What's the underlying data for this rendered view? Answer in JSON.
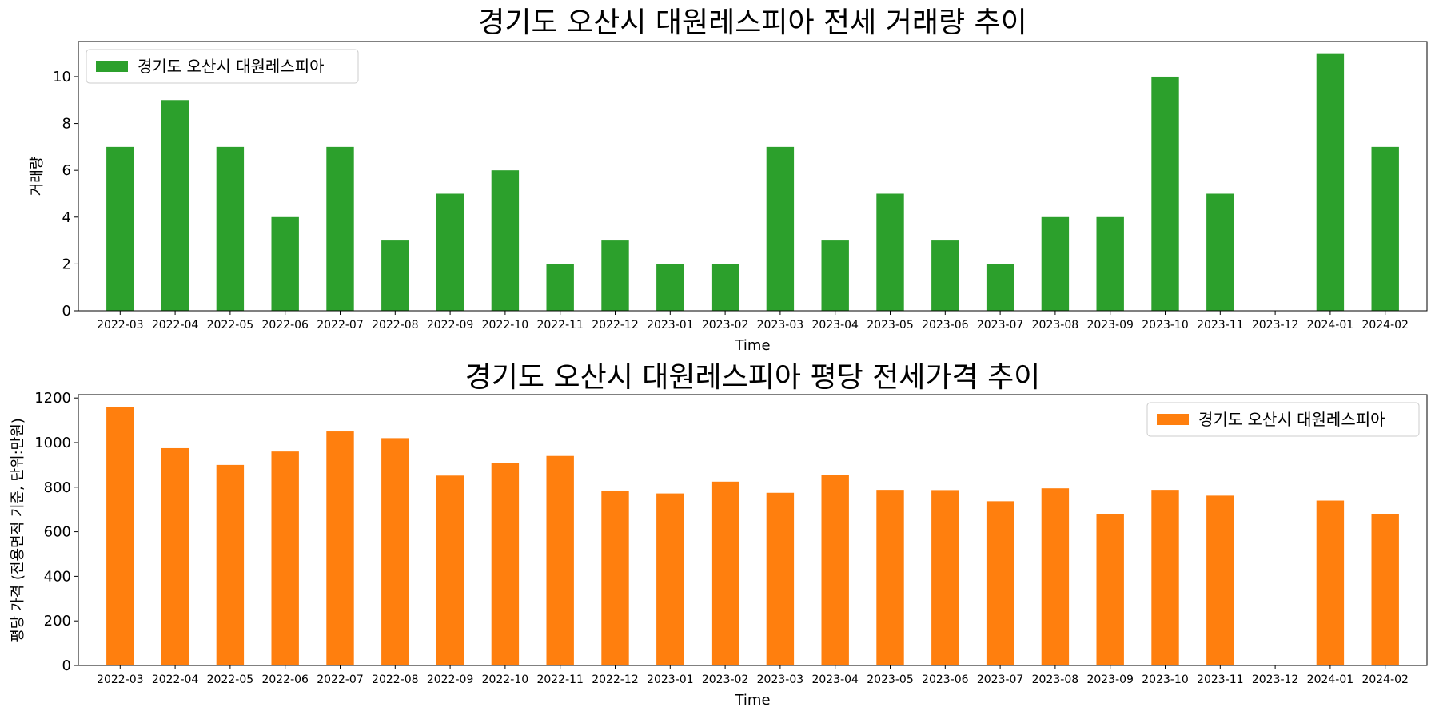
{
  "chart_data": [
    {
      "type": "bar",
      "title": "경기도 오산시 대원레스피아 전세 거래량 추이",
      "xlabel": "Time",
      "ylabel": "거래량",
      "ylim": [
        0,
        11.5
      ],
      "yticks": [
        0,
        2,
        4,
        6,
        8,
        10
      ],
      "legend_position": "top-left",
      "color": "#2ca02c",
      "categories": [
        "2022-03",
        "2022-04",
        "2022-05",
        "2022-06",
        "2022-07",
        "2022-08",
        "2022-09",
        "2022-10",
        "2022-11",
        "2022-12",
        "2023-01",
        "2023-02",
        "2023-03",
        "2023-04",
        "2023-05",
        "2023-06",
        "2023-07",
        "2023-08",
        "2023-09",
        "2023-10",
        "2023-11",
        "2023-12",
        "2024-01",
        "2024-02"
      ],
      "series": [
        {
          "name": "경기도 오산시 대원레스피아",
          "values": [
            7,
            9,
            7,
            4,
            7,
            3,
            5,
            6,
            2,
            3,
            2,
            2,
            7,
            3,
            5,
            3,
            2,
            4,
            4,
            10,
            5,
            null,
            11,
            7
          ]
        }
      ]
    },
    {
      "type": "bar",
      "title": "경기도 오산시 대원레스피아 평당 전세가격 추이",
      "xlabel": "Time",
      "ylabel": "평당 가격 (전용면적 기준, 단위:만원)",
      "ylim": [
        0,
        1215
      ],
      "yticks": [
        0,
        200,
        400,
        600,
        800,
        1000,
        1200
      ],
      "legend_position": "top-right",
      "color": "#ff7f0e",
      "categories": [
        "2022-03",
        "2022-04",
        "2022-05",
        "2022-06",
        "2022-07",
        "2022-08",
        "2022-09",
        "2022-10",
        "2022-11",
        "2022-12",
        "2023-01",
        "2023-02",
        "2023-03",
        "2023-04",
        "2023-05",
        "2023-06",
        "2023-07",
        "2023-08",
        "2023-09",
        "2023-10",
        "2023-11",
        "2023-12",
        "2024-01",
        "2024-02"
      ],
      "series": [
        {
          "name": "경기도 오산시 대원레스피아",
          "values": [
            1160,
            975,
            900,
            960,
            1050,
            1020,
            852,
            910,
            940,
            785,
            772,
            825,
            775,
            855,
            788,
            787,
            737,
            795,
            680,
            788,
            762,
            null,
            740,
            680
          ]
        }
      ]
    }
  ]
}
